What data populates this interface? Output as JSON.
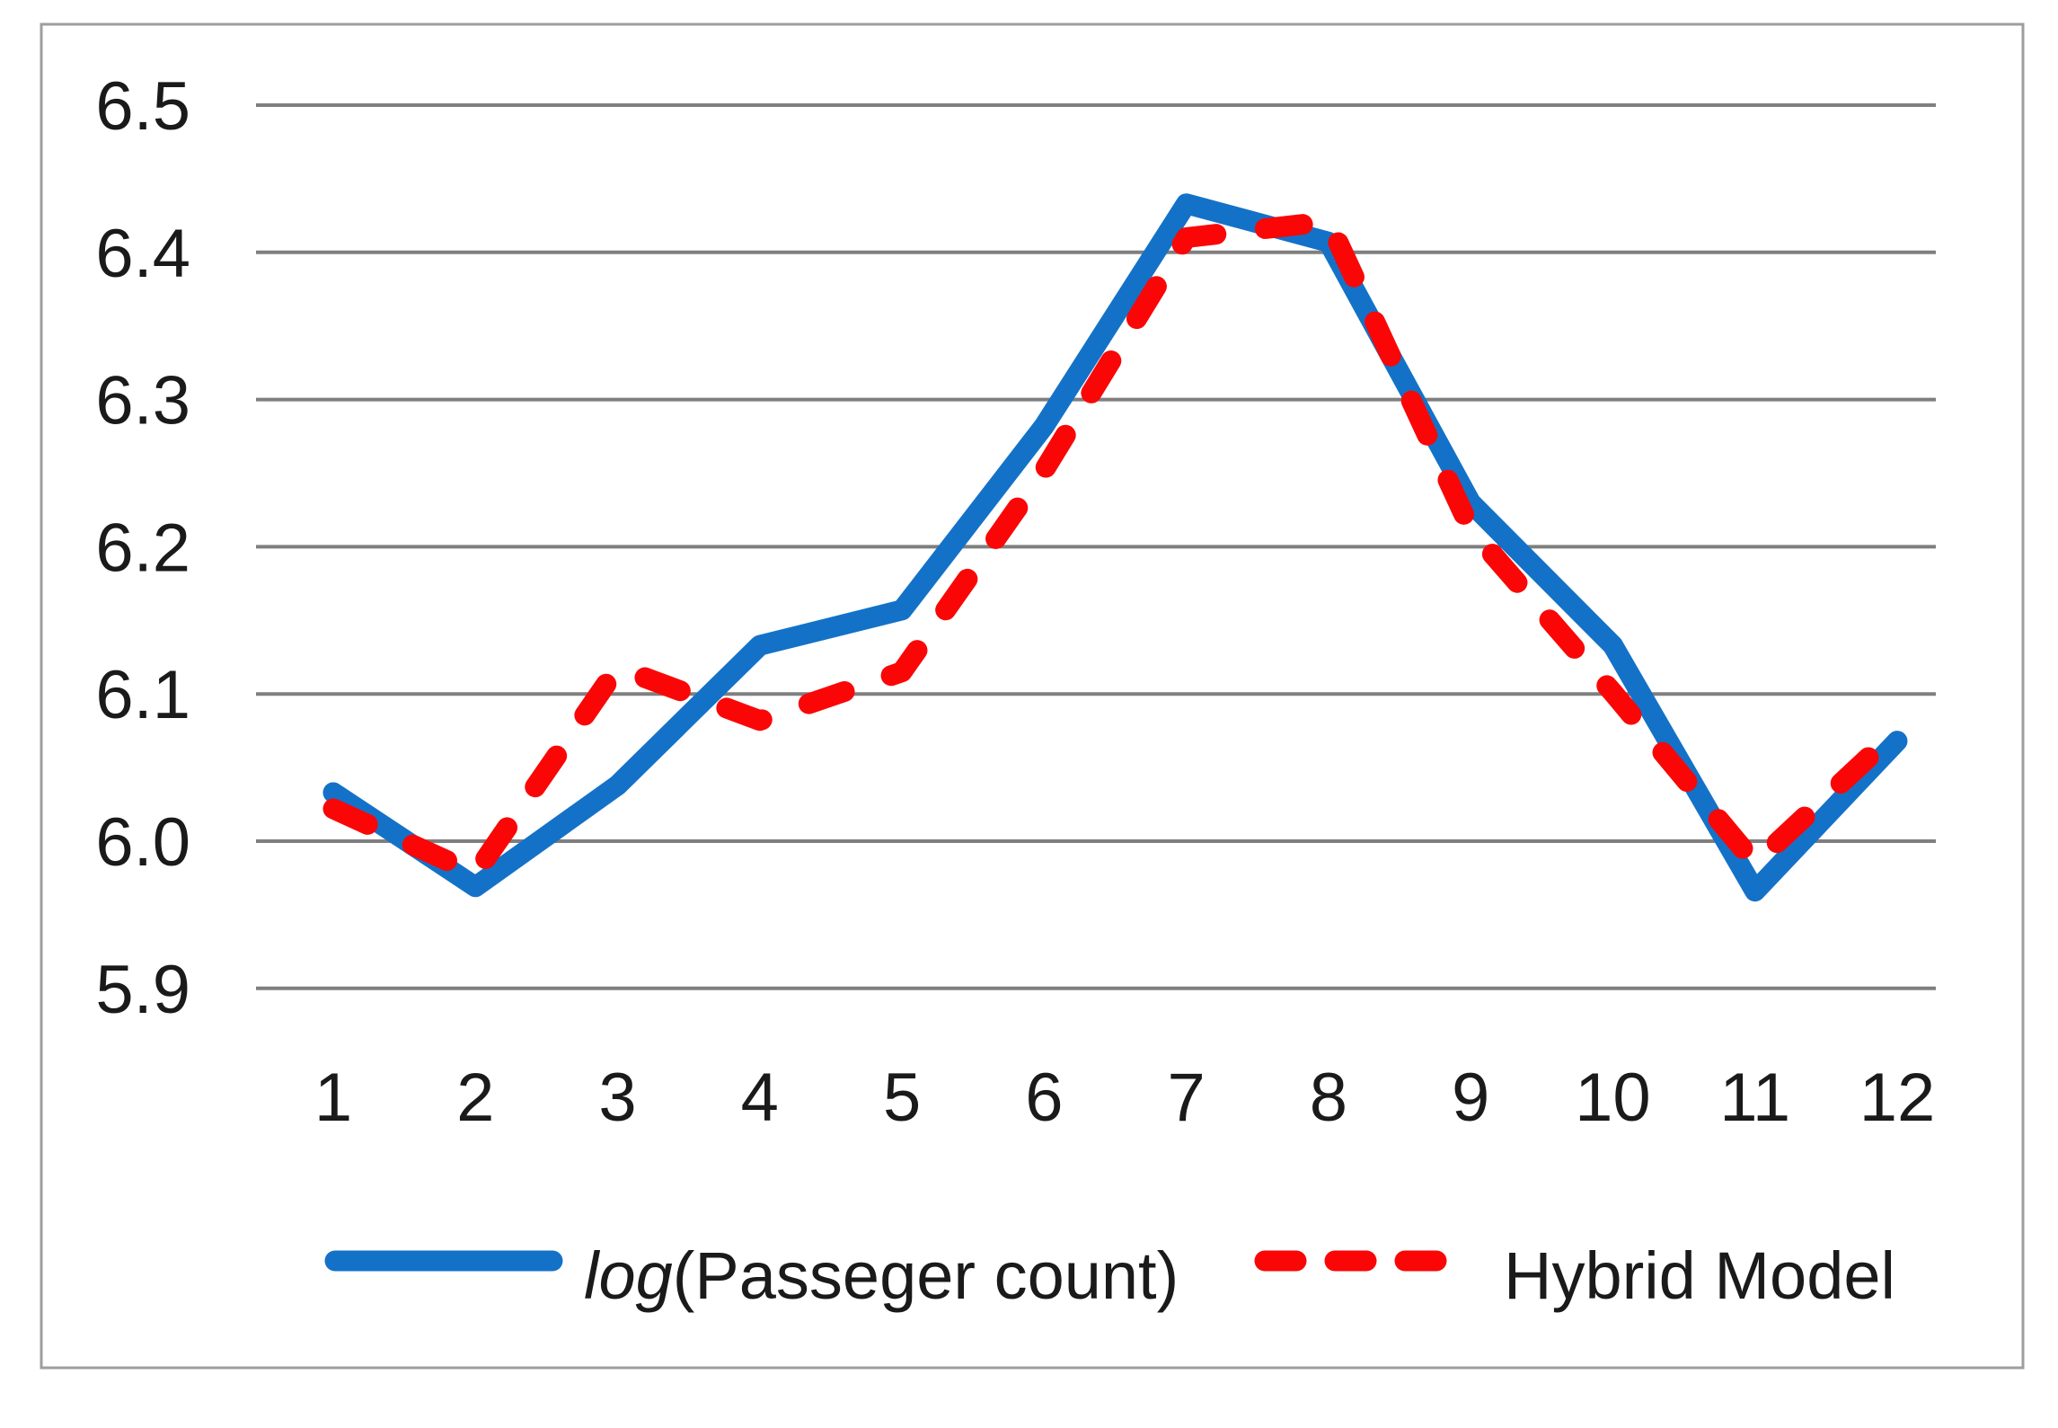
{
  "figure": {
    "background": "#ffffff",
    "frame_color": "#9e9e9e"
  },
  "chart_data": {
    "type": "line",
    "title": "",
    "xlabel": "",
    "ylabel": "",
    "x": [
      1,
      2,
      3,
      4,
      5,
      6,
      7,
      8,
      9,
      10,
      11,
      12
    ],
    "xtick_labels": [
      "1",
      "2",
      "3",
      "4",
      "5",
      "6",
      "7",
      "8",
      "9",
      "10",
      "11",
      "12"
    ],
    "yticks": [
      6.5,
      6.4,
      6.3,
      6.2,
      6.1,
      6.0,
      5.9
    ],
    "ytick_labels": [
      "6.5",
      "6.4",
      "6.3",
      "6.2",
      "6.1",
      "6.0",
      "5.9"
    ],
    "ylim": [
      5.85,
      6.52
    ],
    "grid": true,
    "gridline_color": "#7f7f7f",
    "tick_label_color": "#1a1a1a",
    "legend_position": "bottom",
    "series": [
      {
        "name": "log(Passeger count)",
        "name_italic_part": "log",
        "name_regular_part": "(Passeger count)",
        "color": "#1372c8",
        "line_style": "solid",
        "values": [
          6.033,
          5.969,
          6.038,
          6.133,
          6.157,
          6.282,
          6.433,
          6.407,
          6.23,
          6.133,
          5.966,
          6.068
        ]
      },
      {
        "name": "Hybrid Model",
        "name_italic_part": "",
        "name_regular_part": "Hybrid Model",
        "color": "#fb0606",
        "line_style": "dashed",
        "values": [
          6.022,
          5.978,
          6.118,
          6.082,
          6.115,
          6.252,
          6.41,
          6.421,
          6.212,
          6.101,
          5.985,
          6.075
        ]
      }
    ]
  }
}
